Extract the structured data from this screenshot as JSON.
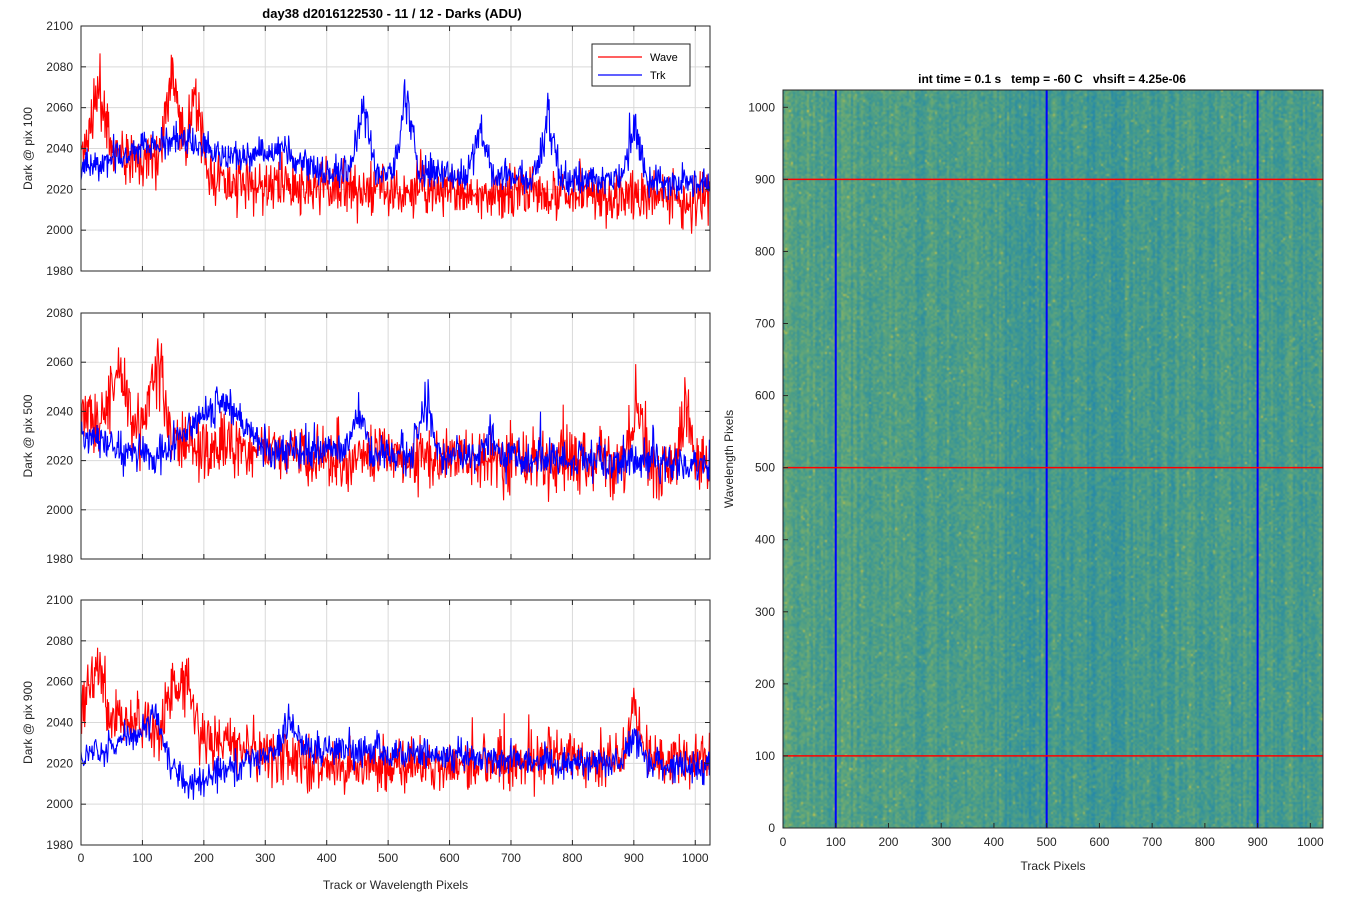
{
  "figure": {
    "suptitle": "day38 d2016122530 - 11 / 12 - Darks (ADU)"
  },
  "colors": {
    "wave": "#ff0000",
    "trk": "#0000ff",
    "grid": "#d9d9d9",
    "axis": "#262626"
  },
  "chart_data": [
    {
      "type": "line",
      "id": "dark-pix-100",
      "title": "day38 d2016122530 - 11 / 12 - Darks (ADU)",
      "ylabel": "Dark @ pix 100",
      "xlabel": "",
      "xlim": [
        0,
        1024
      ],
      "ylim": [
        1980,
        2100
      ],
      "xticks": [
        0,
        100,
        200,
        300,
        400,
        500,
        600,
        700,
        800,
        900,
        1000
      ],
      "yticks": [
        1980,
        2000,
        2020,
        2040,
        2060,
        2080,
        2100
      ],
      "grid": true,
      "legend": {
        "placement": "top-right",
        "entries": [
          "Wave",
          "Trk"
        ]
      },
      "series": [
        {
          "name": "Wave",
          "color": "#ff0000",
          "mean": 2020,
          "noise": 10,
          "trend": [
            [
              0,
              2040
            ],
            [
              150,
              2035
            ],
            [
              250,
              2022
            ],
            [
              1024,
              2015
            ]
          ],
          "peaks": [
            [
              148,
              2090
            ],
            [
              28,
              2080
            ],
            [
              185,
              2075
            ]
          ],
          "seed": 11
        },
        {
          "name": "Trk",
          "color": "#0000ff",
          "mean": 2027,
          "noise": 6,
          "trend": [
            [
              0,
              2030
            ],
            [
              150,
              2045
            ],
            [
              250,
              2035
            ],
            [
              330,
              2040
            ],
            [
              380,
              2030
            ],
            [
              1024,
              2022
            ]
          ],
          "peaks": [
            [
              460,
              2068
            ],
            [
              530,
              2075
            ],
            [
              650,
              2055
            ],
            [
              760,
              2062
            ],
            [
              900,
              2058
            ]
          ],
          "seed": 23
        }
      ]
    },
    {
      "type": "line",
      "id": "dark-pix-500",
      "ylabel": "Dark @ pix 500",
      "xlabel": "",
      "xlim": [
        0,
        1024
      ],
      "ylim": [
        1980,
        2080
      ],
      "xticks": [
        0,
        100,
        200,
        300,
        400,
        500,
        600,
        700,
        800,
        900,
        1000
      ],
      "yticks": [
        1980,
        2000,
        2020,
        2040,
        2060,
        2080
      ],
      "grid": true,
      "series": [
        {
          "name": "Wave",
          "color": "#ff0000",
          "mean": 2018,
          "noise": 10,
          "trend": [
            [
              0,
              2040
            ],
            [
              200,
              2025
            ],
            [
              1024,
              2016
            ]
          ],
          "peaks": [
            [
              125,
              2070
            ],
            [
              60,
              2068
            ],
            [
              905,
              2052
            ],
            [
              985,
              2052
            ]
          ],
          "seed": 37
        },
        {
          "name": "Trk",
          "color": "#0000ff",
          "mean": 2022,
          "noise": 6,
          "trend": [
            [
              0,
              2030
            ],
            [
              120,
              2020
            ],
            [
              230,
              2045
            ],
            [
              300,
              2025
            ],
            [
              1024,
              2018
            ]
          ],
          "peaks": [
            [
              450,
              2045
            ],
            [
              560,
              2055
            ],
            [
              665,
              2035
            ]
          ],
          "seed": 41
        }
      ]
    },
    {
      "type": "line",
      "id": "dark-pix-900",
      "ylabel": "Dark @ pix 900",
      "xlabel": "Track or Wavelength Pixels",
      "xlim": [
        0,
        1024
      ],
      "ylim": [
        1980,
        2100
      ],
      "xticks": [
        0,
        100,
        200,
        300,
        400,
        500,
        600,
        700,
        800,
        900,
        1000
      ],
      "yticks": [
        1980,
        2000,
        2020,
        2040,
        2060,
        2080,
        2100
      ],
      "grid": true,
      "series": [
        {
          "name": "Wave",
          "color": "#ff0000",
          "mean": 2020,
          "noise": 10,
          "trend": [
            [
              0,
              2045
            ],
            [
              200,
              2032
            ],
            [
              400,
              2018
            ],
            [
              1024,
              2022
            ]
          ],
          "peaks": [
            [
              25,
              2082
            ],
            [
              150,
              2068
            ],
            [
              172,
              2068
            ],
            [
              900,
              2055
            ]
          ],
          "seed": 53
        },
        {
          "name": "Trk",
          "color": "#0000ff",
          "mean": 2018,
          "noise": 6,
          "trend": [
            [
              0,
              2022
            ],
            [
              100,
              2035
            ],
            [
              180,
              2010
            ],
            [
              330,
              2028
            ],
            [
              1024,
              2017
            ]
          ],
          "peaks": [
            [
              120,
              2050
            ],
            [
              340,
              2045
            ],
            [
              900,
              2040
            ]
          ],
          "seed": 67
        }
      ]
    },
    {
      "type": "heatmap",
      "id": "dark-frame",
      "title": "int time = 0.1 s   temp = -60 C   vhsift = 4.25e-06",
      "xlabel": "Track Pixels",
      "ylabel": "Wavelength Pixels",
      "xlim": [
        0,
        1024
      ],
      "ylim": [
        0,
        1024
      ],
      "xticks": [
        0,
        100,
        200,
        300,
        400,
        500,
        600,
        700,
        800,
        900,
        1000
      ],
      "yticks": [
        0,
        100,
        200,
        300,
        400,
        500,
        600,
        700,
        800,
        900,
        1000
      ],
      "colormap": "parula",
      "vertical_lines": {
        "x": [
          100,
          500,
          900
        ],
        "color": "#0000ff"
      },
      "horizontal_lines": {
        "y": [
          100,
          500,
          900
        ],
        "color": "#ff0000"
      }
    }
  ]
}
